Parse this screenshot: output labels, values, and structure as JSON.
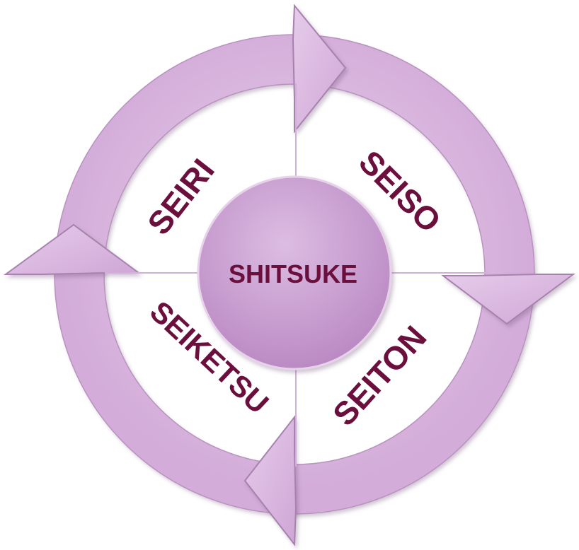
{
  "diagram": {
    "center": "SHITSUKE",
    "quadrants": {
      "top_left": "SEIRI",
      "top_right": "SEISO",
      "bottom_right": "SEITON",
      "bottom_left": "SEIKETSU"
    }
  },
  "colors": {
    "ring": "#d8b4de",
    "ring_edge": "#a07aa8",
    "center": "#c79ccf",
    "text": "#6b0f3c",
    "divider": "#d0b0d6"
  }
}
